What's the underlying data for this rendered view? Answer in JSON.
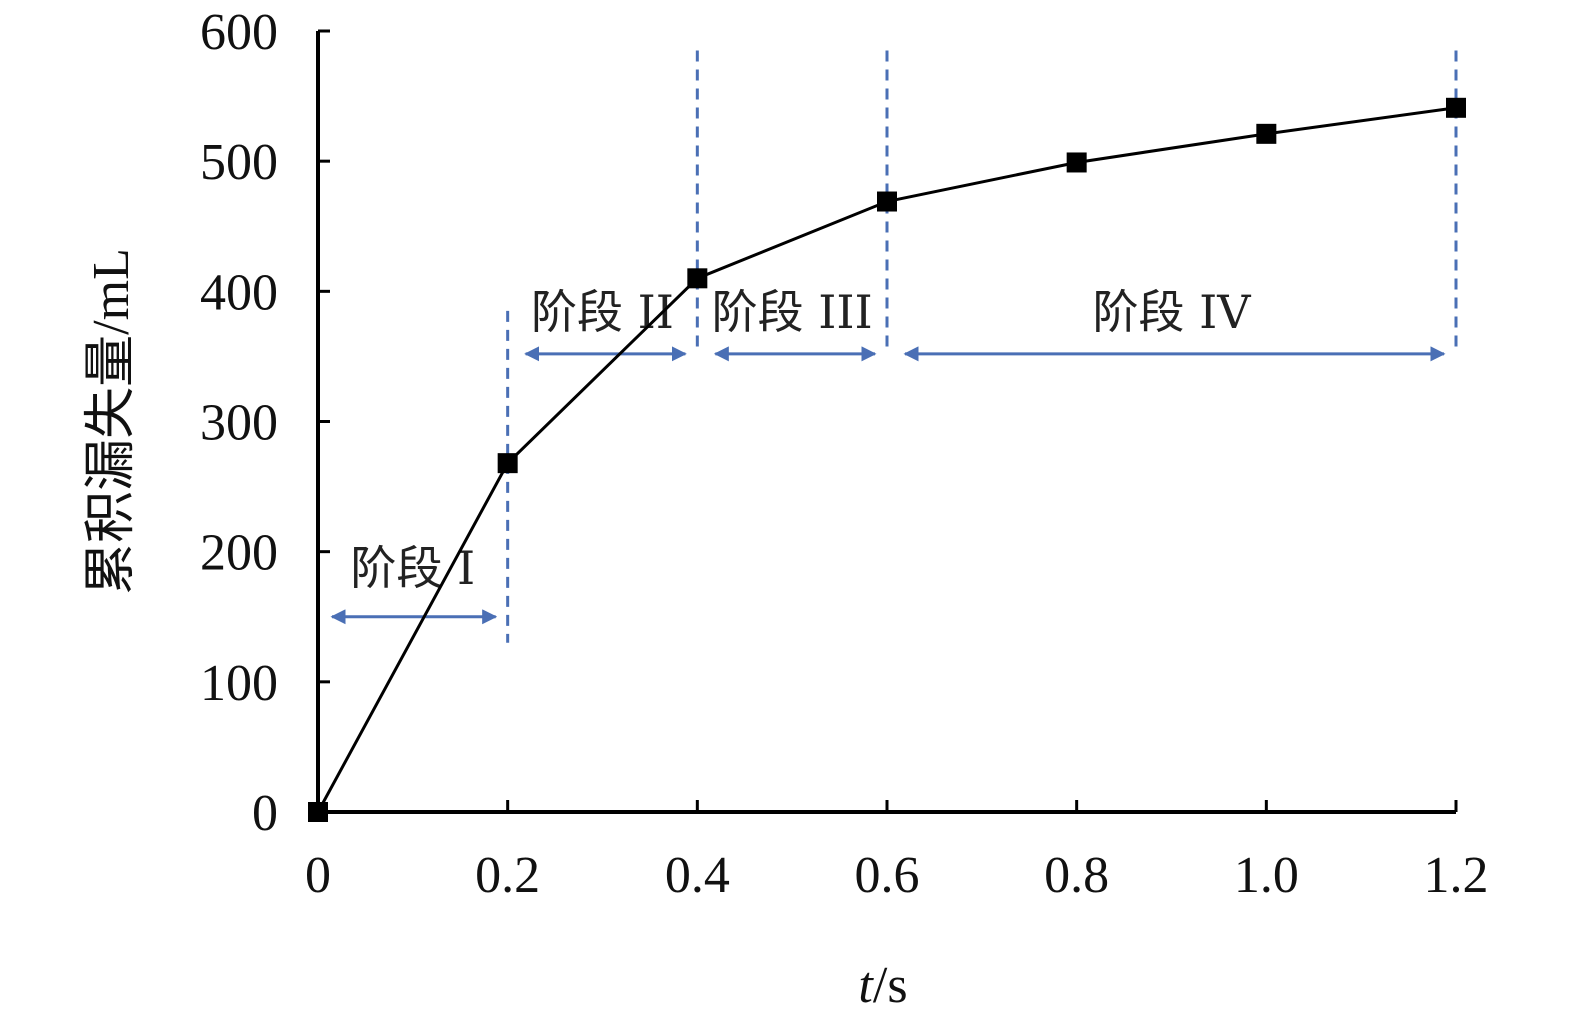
{
  "chart_data": {
    "type": "line",
    "xlabel_italic": "t",
    "xlabel_unit": "/s",
    "ylabel": "累积漏失量/mL",
    "xlim": [
      0,
      1.2
    ],
    "ylim": [
      0,
      600
    ],
    "x_ticks": [
      "0",
      "0.2",
      "0.4",
      "0.6",
      "0.8",
      "1.0",
      "1.2"
    ],
    "x_tick_values": [
      0,
      0.2,
      0.4,
      0.6,
      0.8,
      1.0,
      1.2
    ],
    "y_ticks": [
      "0",
      "100",
      "200",
      "300",
      "400",
      "500",
      "600"
    ],
    "y_tick_values": [
      0,
      100,
      200,
      300,
      400,
      500,
      600
    ],
    "series": [
      {
        "x": [
          0,
          0.2,
          0.4,
          0.6,
          0.8,
          1.0,
          1.2
        ],
        "y": [
          0,
          268,
          410,
          469,
          499,
          521,
          541
        ]
      }
    ],
    "stages": [
      {
        "label": "阶段 I",
        "x_start": 0,
        "x_end": 0.2,
        "arrow_y": 150,
        "label_y": 175
      },
      {
        "label": "阶段 II",
        "x_start": 0.2,
        "x_end": 0.4,
        "arrow_y": 352,
        "label_y": 372
      },
      {
        "label": "阶段 III",
        "x_start": 0.4,
        "x_end": 0.6,
        "arrow_y": 352,
        "label_y": 372
      },
      {
        "label": "阶段 IV",
        "x_start": 0.6,
        "x_end": 1.2,
        "arrow_y": 352,
        "label_y": 372
      }
    ],
    "stage_boundaries": [
      {
        "x": 0.2,
        "y_top": 385
      },
      {
        "x": 0.4,
        "y_top": 585
      },
      {
        "x": 0.6,
        "y_top": 585
      },
      {
        "x": 1.2,
        "y_top": 585
      }
    ],
    "colors": {
      "line": "#000000",
      "marker": "#000000",
      "axis": "#000000",
      "stage": "#4a6fb5"
    },
    "grid": false
  }
}
